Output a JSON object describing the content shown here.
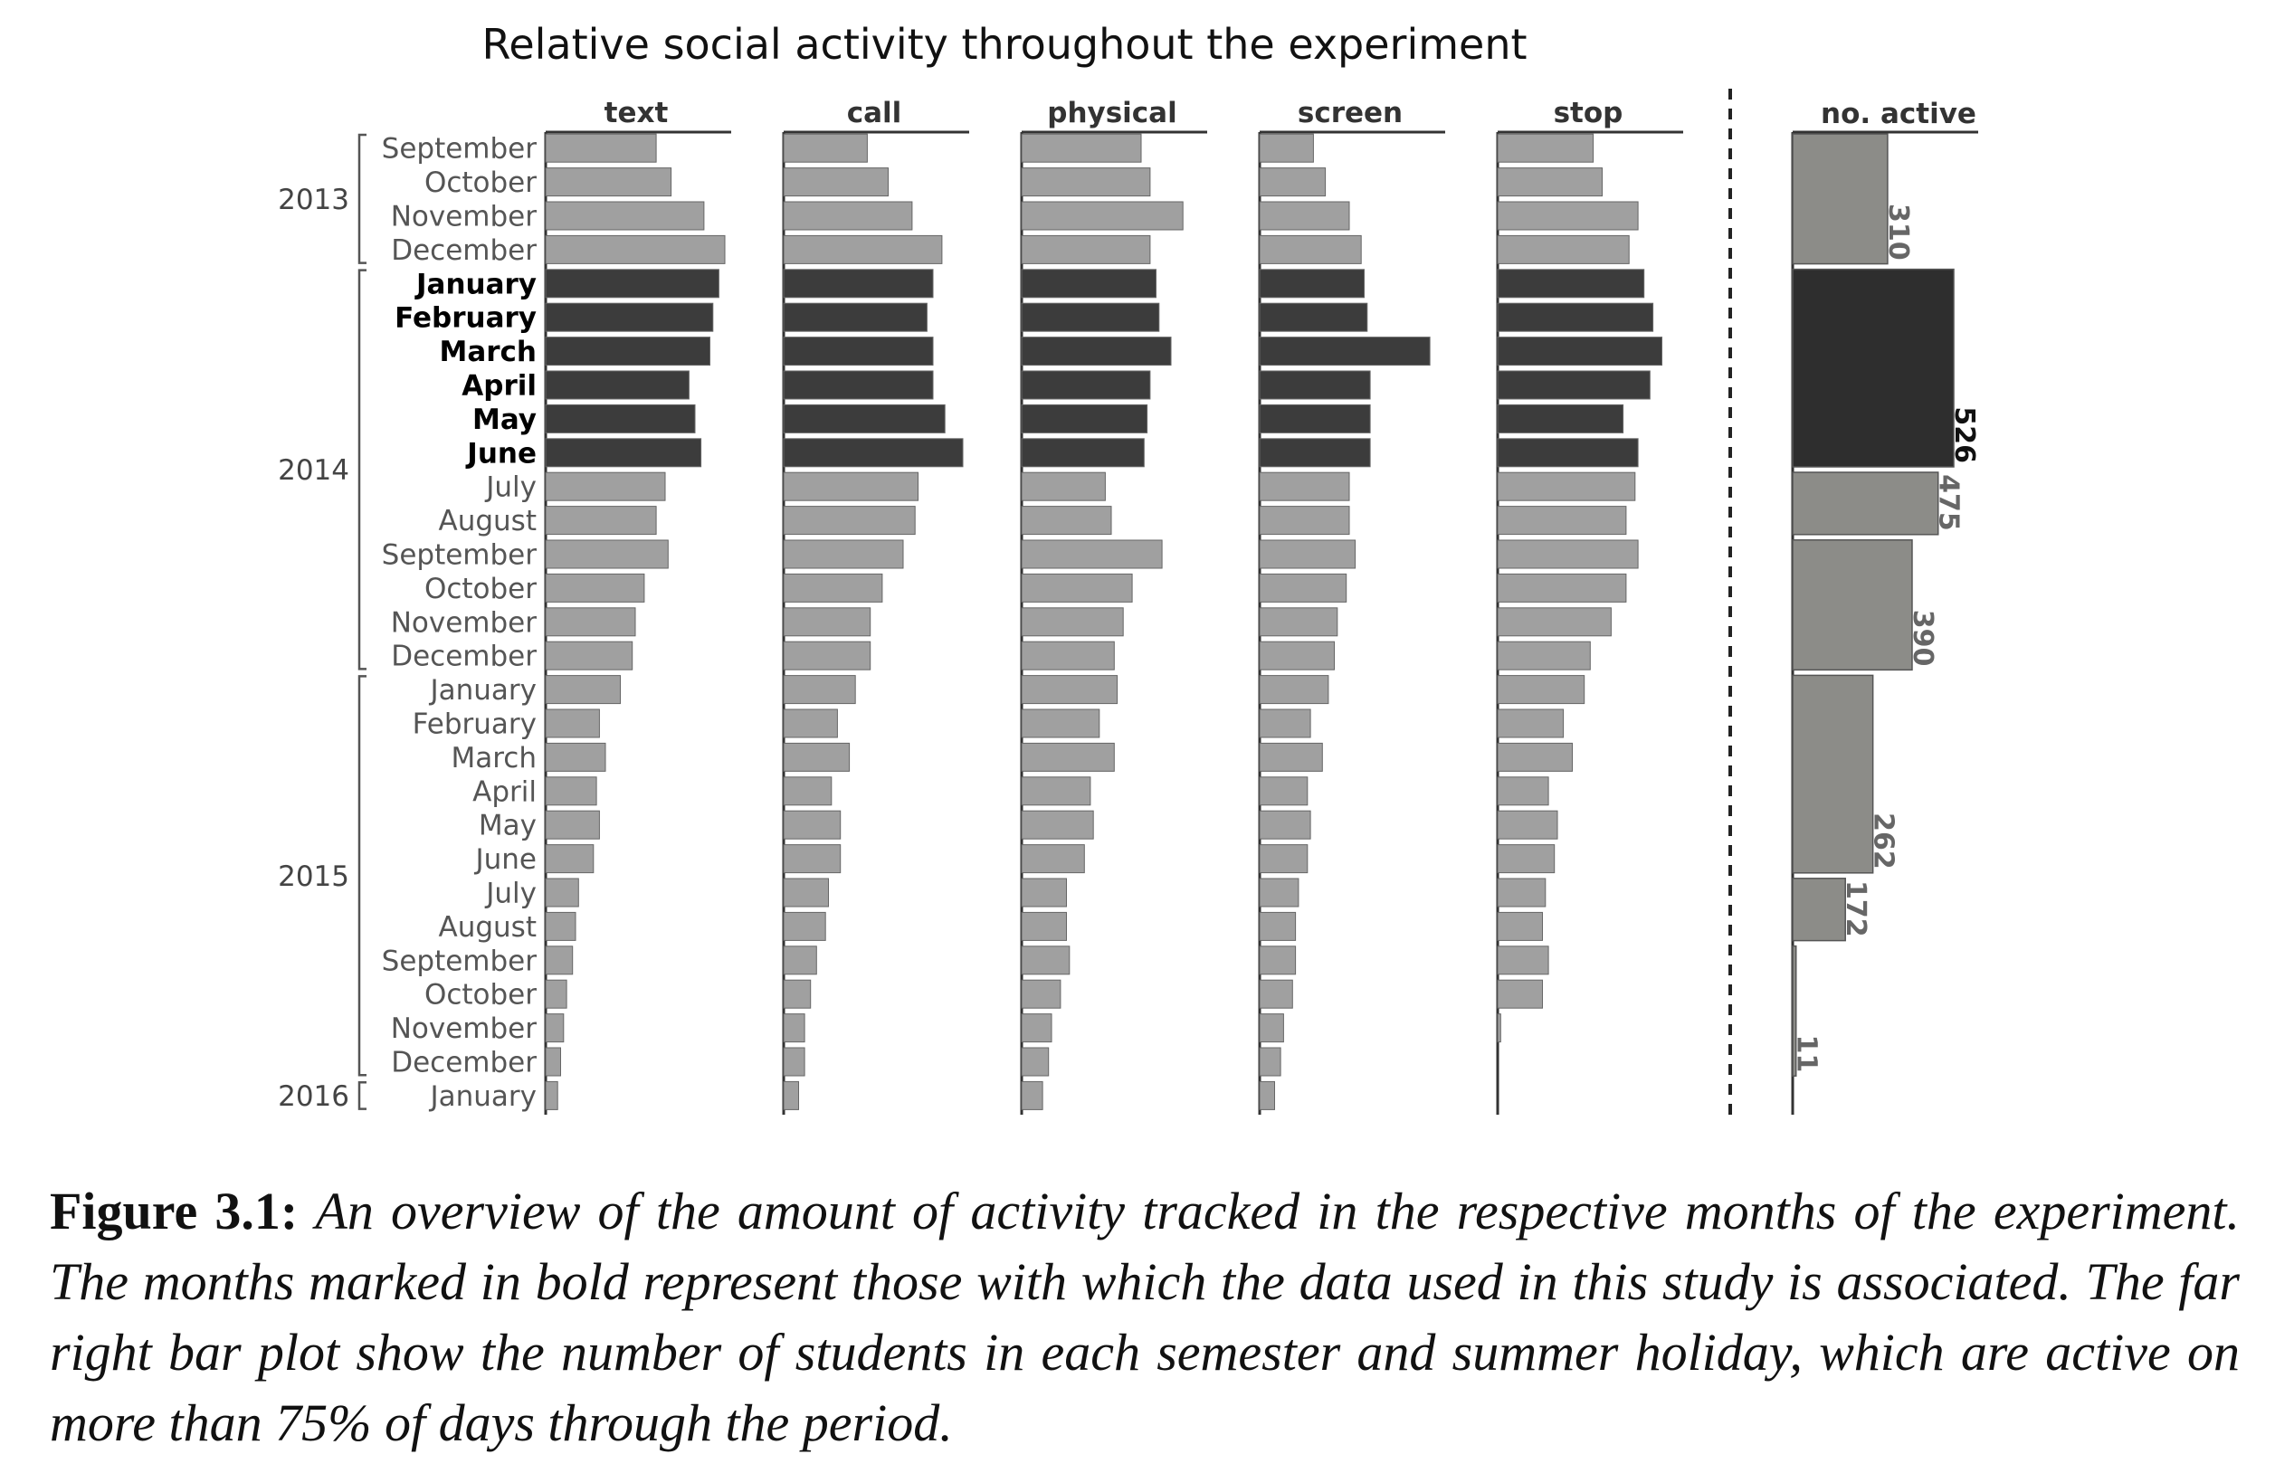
{
  "chart_data": {
    "type": "bar",
    "title": "Relative social activity throughout the experiment",
    "orientation": "horizontal",
    "panels": [
      "text",
      "call",
      "physical",
      "screen",
      "stop"
    ],
    "categories": [
      "September",
      "October",
      "November",
      "December",
      "January",
      "February",
      "March",
      "April",
      "May",
      "June",
      "July",
      "August",
      "September",
      "October",
      "November",
      "December",
      "January",
      "February",
      "March",
      "April",
      "May",
      "June",
      "July",
      "August",
      "September",
      "October",
      "November",
      "December",
      "January"
    ],
    "highlighted": [
      false,
      false,
      false,
      false,
      true,
      true,
      true,
      true,
      true,
      true,
      false,
      false,
      false,
      false,
      false,
      false,
      false,
      false,
      false,
      false,
      false,
      false,
      false,
      false,
      false,
      false,
      false,
      false,
      false
    ],
    "year_groups": [
      {
        "label": "2013",
        "start": 0,
        "end": 3
      },
      {
        "label": "2014",
        "start": 4,
        "end": 15
      },
      {
        "label": "2015",
        "start": 16,
        "end": 27
      },
      {
        "label": "2016",
        "start": 28,
        "end": 28
      }
    ],
    "series": [
      {
        "name": "text",
        "values": [
          0.37,
          0.42,
          0.53,
          0.6,
          0.58,
          0.56,
          0.55,
          0.48,
          0.5,
          0.52,
          0.4,
          0.37,
          0.41,
          0.33,
          0.3,
          0.29,
          0.25,
          0.18,
          0.2,
          0.17,
          0.18,
          0.16,
          0.11,
          0.1,
          0.09,
          0.07,
          0.06,
          0.05,
          0.04
        ]
      },
      {
        "name": "call",
        "values": [
          0.28,
          0.35,
          0.43,
          0.53,
          0.5,
          0.48,
          0.5,
          0.5,
          0.54,
          0.6,
          0.45,
          0.44,
          0.4,
          0.33,
          0.29,
          0.29,
          0.24,
          0.18,
          0.22,
          0.16,
          0.19,
          0.19,
          0.15,
          0.14,
          0.11,
          0.09,
          0.07,
          0.07,
          0.05
        ]
      },
      {
        "name": "physical",
        "values": [
          0.4,
          0.43,
          0.54,
          0.43,
          0.45,
          0.46,
          0.5,
          0.43,
          0.42,
          0.41,
          0.28,
          0.3,
          0.47,
          0.37,
          0.34,
          0.31,
          0.32,
          0.26,
          0.31,
          0.23,
          0.24,
          0.21,
          0.15,
          0.15,
          0.16,
          0.13,
          0.1,
          0.09,
          0.07
        ]
      },
      {
        "name": "screen",
        "values": [
          0.18,
          0.22,
          0.3,
          0.34,
          0.35,
          0.36,
          0.57,
          0.37,
          0.37,
          0.37,
          0.3,
          0.3,
          0.32,
          0.29,
          0.26,
          0.25,
          0.23,
          0.17,
          0.21,
          0.16,
          0.17,
          0.16,
          0.13,
          0.12,
          0.12,
          0.11,
          0.08,
          0.07,
          0.05
        ]
      },
      {
        "name": "stop",
        "values": [
          0.32,
          0.35,
          0.47,
          0.44,
          0.49,
          0.52,
          0.55,
          0.51,
          0.42,
          0.47,
          0.46,
          0.43,
          0.47,
          0.43,
          0.38,
          0.31,
          0.29,
          0.22,
          0.25,
          0.17,
          0.2,
          0.19,
          0.16,
          0.15,
          0.17,
          0.15,
          0.01,
          0.0,
          0.0
        ]
      }
    ],
    "active_panel": {
      "title": "no. active",
      "periods": [
        {
          "start": 0,
          "end": 3,
          "value": 310,
          "highlighted": false,
          "label": "310"
        },
        {
          "start": 4,
          "end": 9,
          "value": 526,
          "highlighted": true,
          "label": "526"
        },
        {
          "start": 10,
          "end": 11,
          "value": 475,
          "highlighted": false,
          "label": "475"
        },
        {
          "start": 12,
          "end": 15,
          "value": 390,
          "highlighted": false,
          "label": "390"
        },
        {
          "start": 16,
          "end": 21,
          "value": 262,
          "highlighted": false,
          "label": "262"
        },
        {
          "start": 22,
          "end": 23,
          "value": 172,
          "highlighted": false,
          "label": "172"
        },
        {
          "start": 24,
          "end": 27,
          "value": 11,
          "highlighted": false,
          "label": "11"
        }
      ],
      "xlim": [
        0,
        526
      ]
    },
    "xlim": [
      0,
      1
    ],
    "colors": {
      "normal": "#a0a0a0",
      "highlight": "#3c3c3c",
      "active_normal": "#8c8c88",
      "active_highlight": "#2e2e2e",
      "text_normal": "#555555",
      "text_highlight": "#000000"
    }
  },
  "caption": {
    "label": "Figure 3.1:",
    "text": "An overview of the amount of activity tracked in the respective months of the experiment. The months marked in bold represent those with which the data used in this study is associated. The far right bar plot show the number of students in each semester and summer holiday, which are active on more than 75% of days through the period."
  }
}
